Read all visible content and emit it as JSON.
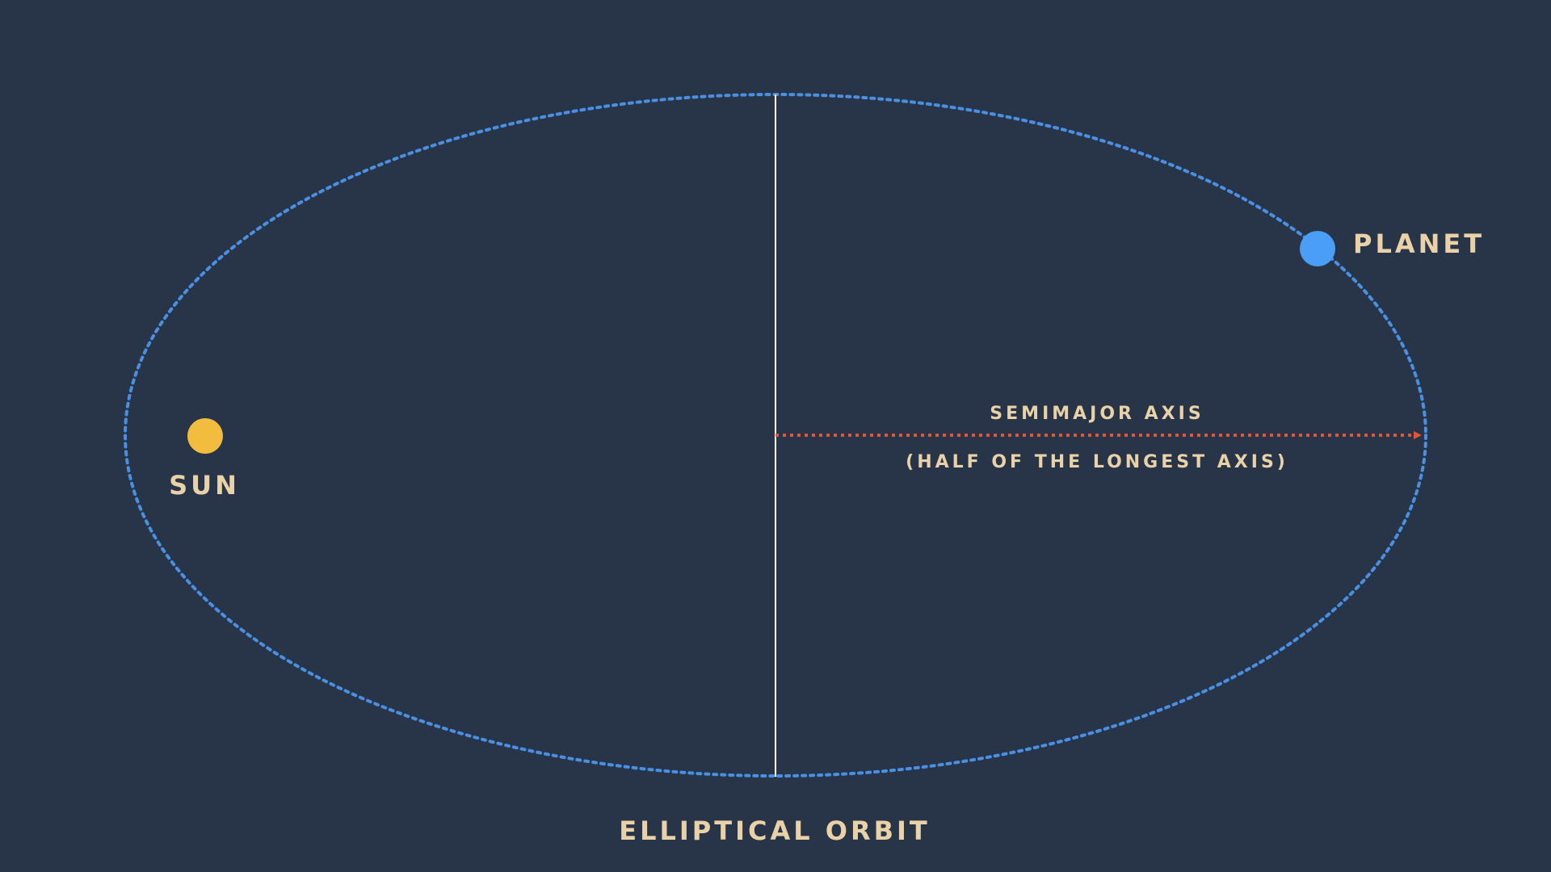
{
  "diagram": {
    "labels": {
      "planet": "PLANET",
      "sun": "SUN",
      "semimajor": "SEMIMAJOR AXIS",
      "semimajor_note": "(HALF OF THE LONGEST AXIS)",
      "caption": "ELLIPTICAL ORBIT"
    },
    "colors": {
      "background": "#283448",
      "orbit": "#4a90e2",
      "planet": "#4a9ef5",
      "sun": "#f2bd3e",
      "axis_arrow": "#e0553c",
      "minor_axis": "#ffffff",
      "label_text": "#ead2a8"
    }
  }
}
